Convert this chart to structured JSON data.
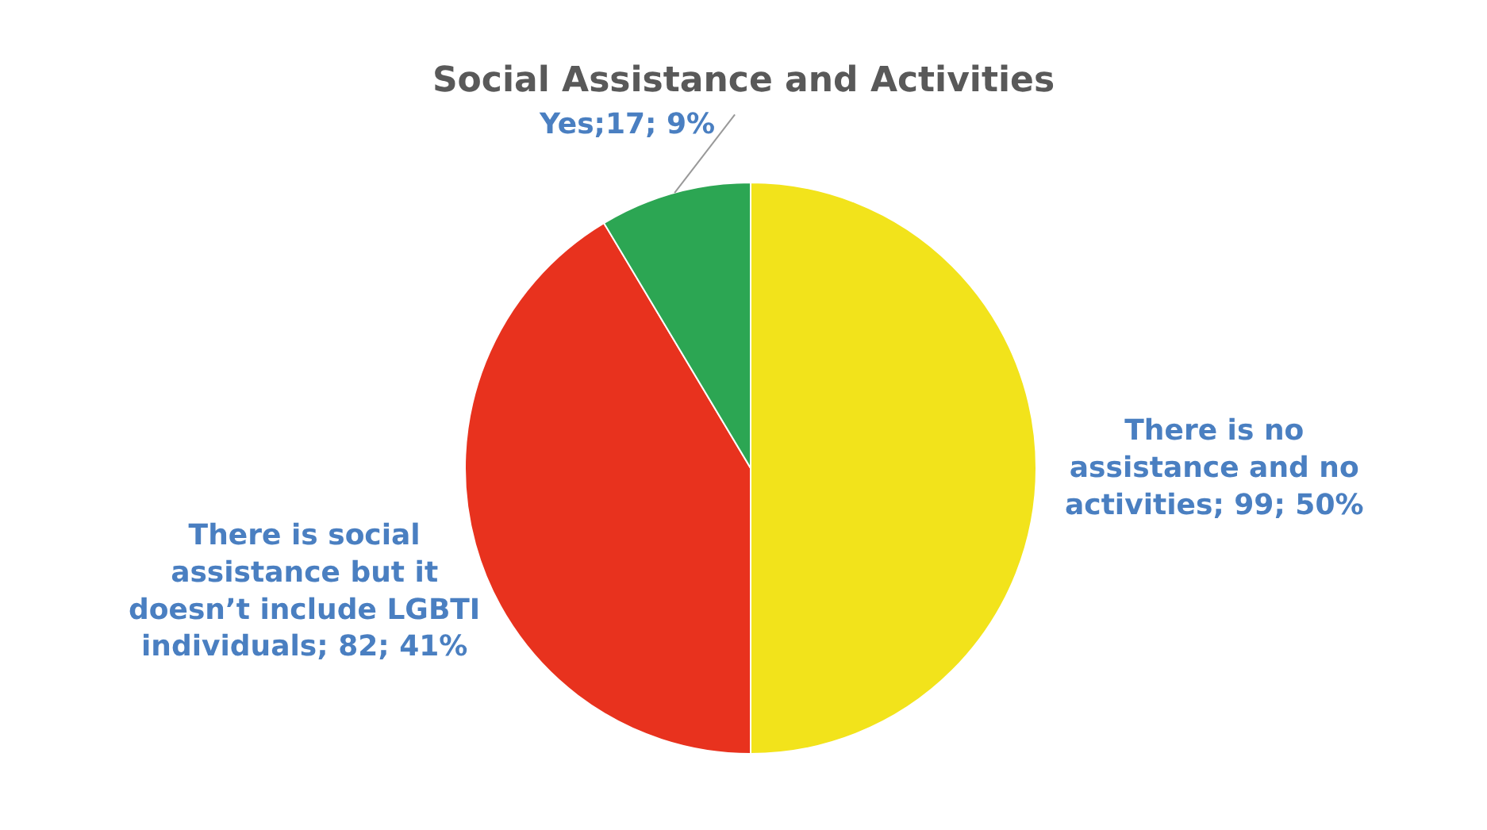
{
  "chart_data": {
    "type": "pie",
    "title": "Social Assistance and Activities",
    "categories": [
      "There is no assistance and no activities",
      "There is social assistance but it doesn’t include LGBTI individuals",
      "Yes"
    ],
    "values": [
      99,
      82,
      17
    ],
    "colors": [
      "#f2e31b",
      "#e8321e",
      "#2ca653"
    ],
    "value_labels": [
      "; 99; 50%",
      "; 82; 41%",
      ";17; 9%"
    ],
    "legend": false
  }
}
